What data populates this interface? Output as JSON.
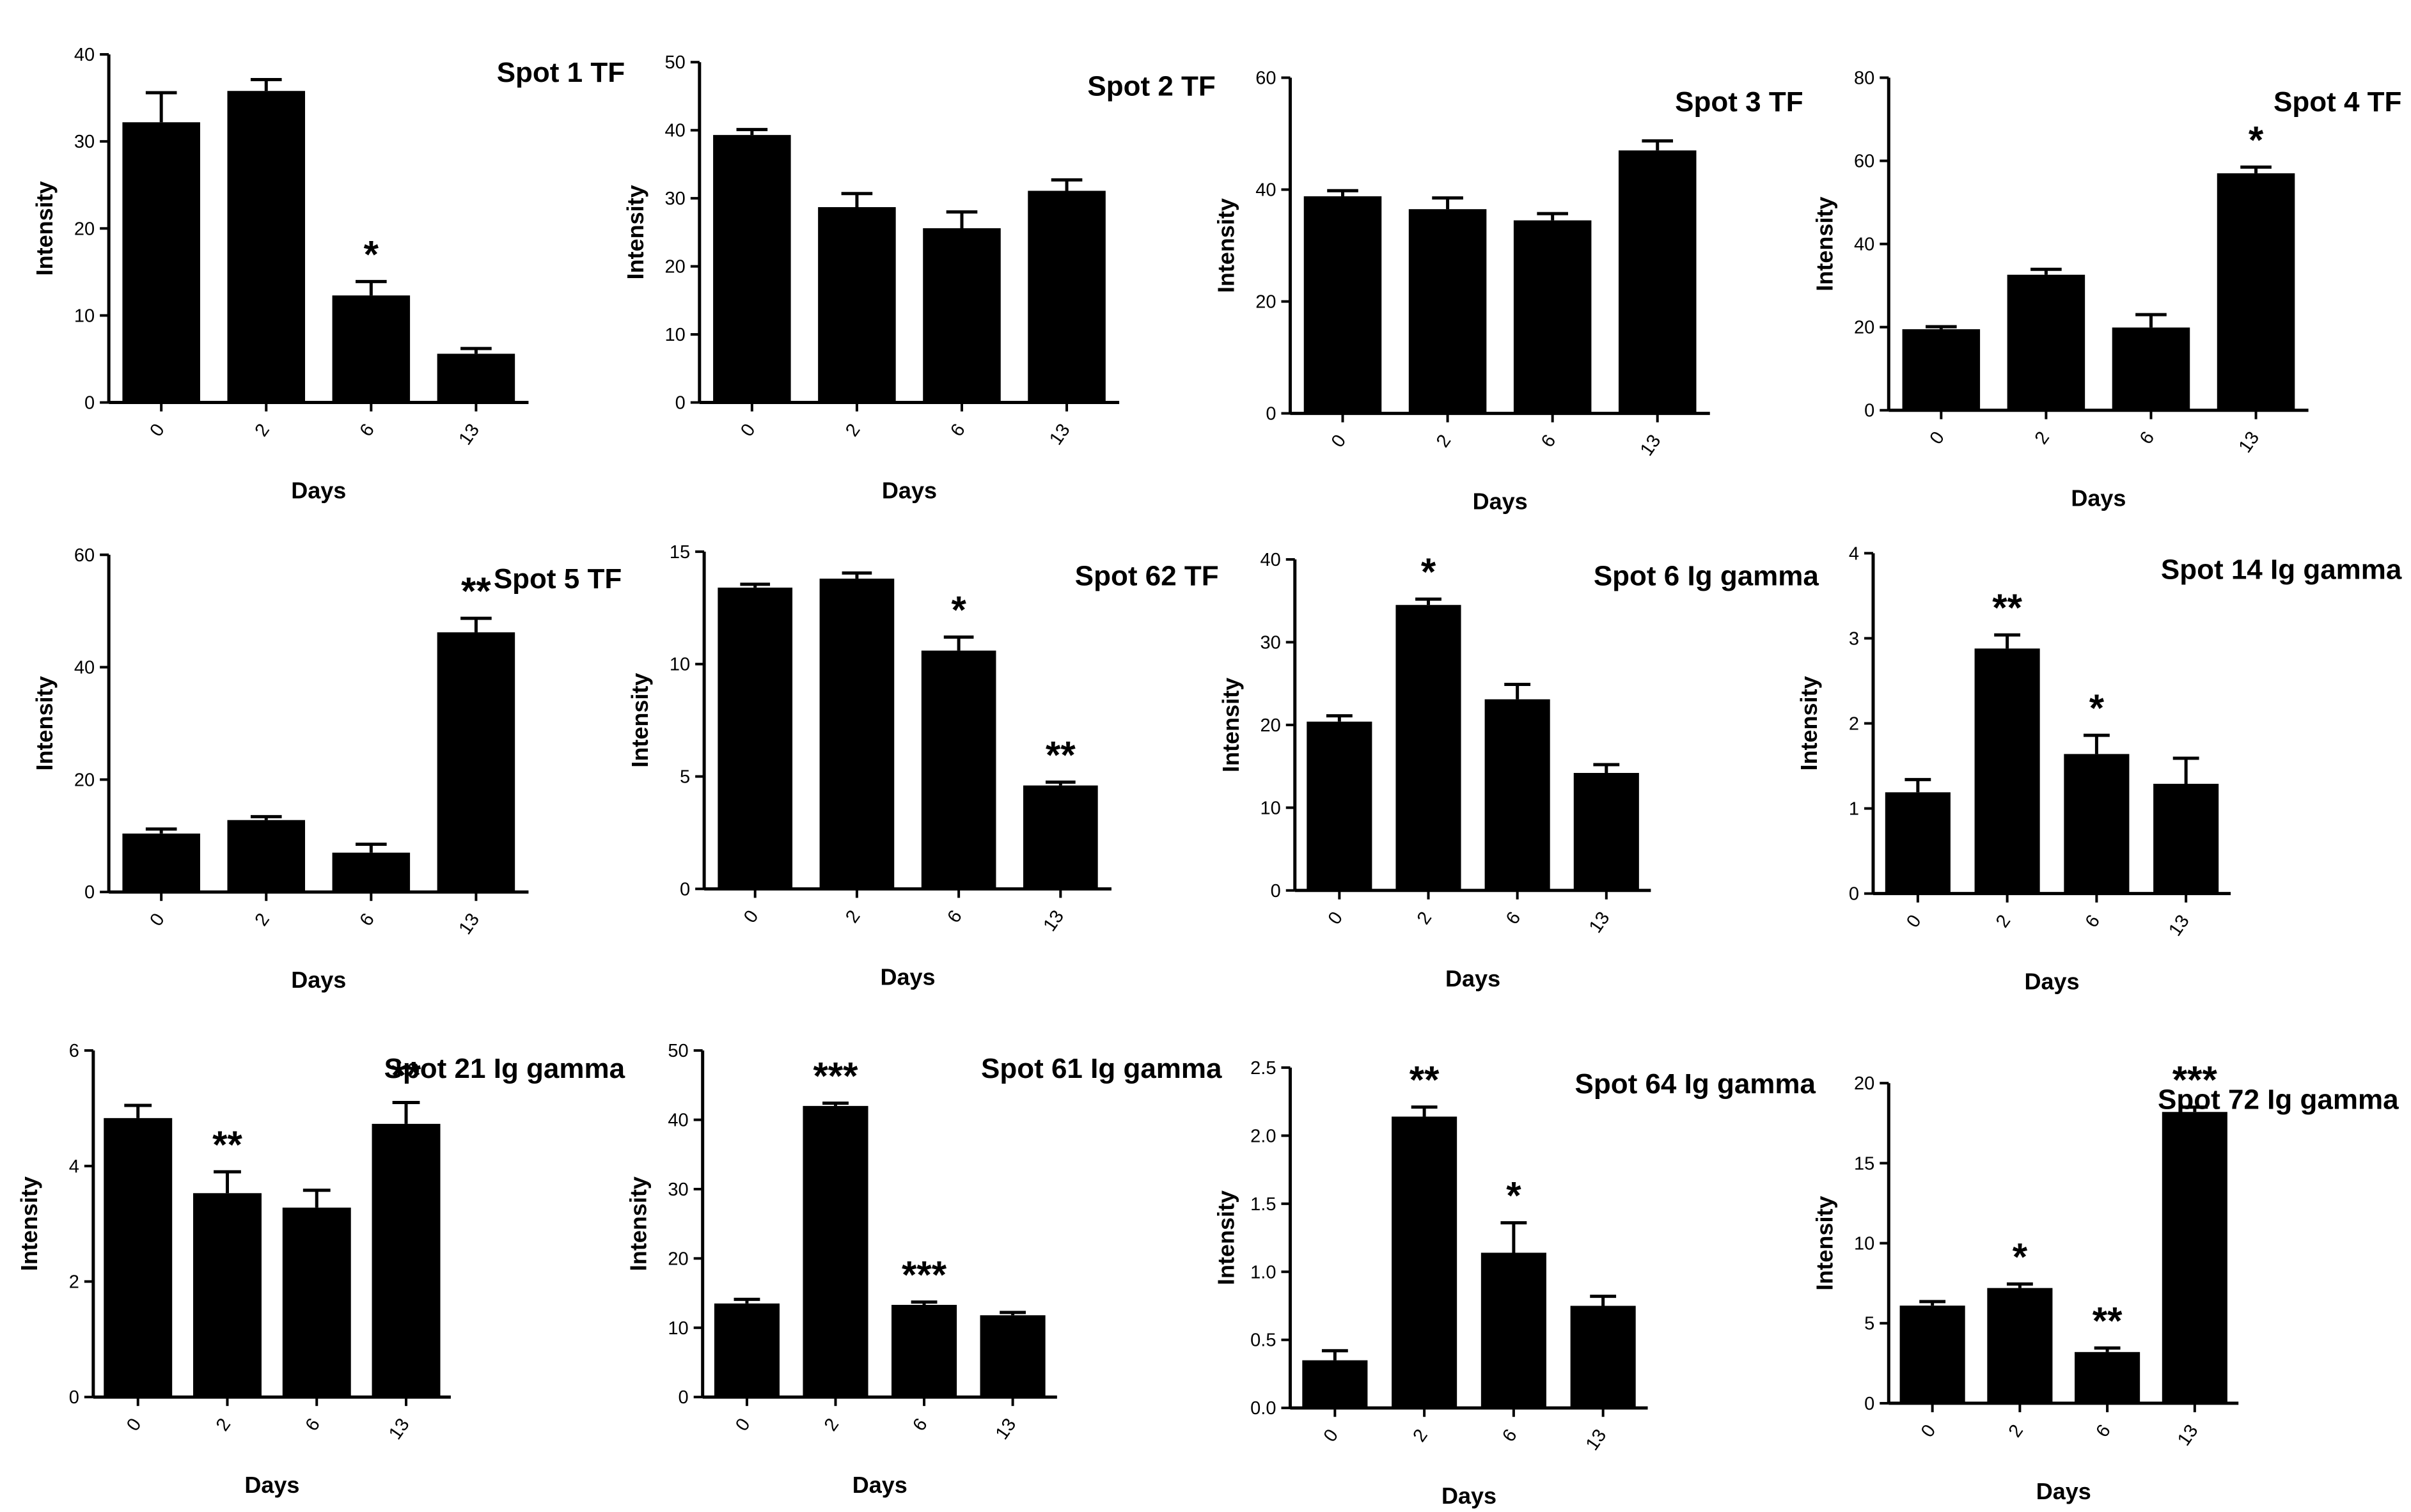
{
  "chart_data": [
    {
      "type": "bar",
      "title": "Spot 1 TF",
      "xlabel": "Days",
      "ylabel": "Intensity",
      "categories": [
        "0",
        "2",
        "6",
        "13"
      ],
      "values": [
        32.2,
        35.8,
        12.3,
        5.6
      ],
      "errors": [
        3.4,
        1.3,
        1.6,
        0.6
      ],
      "significance": [
        "",
        "",
        "*",
        ""
      ],
      "ylim": [
        0,
        40
      ],
      "yticks": [
        "0",
        "10",
        "20",
        "30",
        "40"
      ]
    },
    {
      "type": "bar",
      "title": "Spot 2 TF",
      "xlabel": "Days",
      "ylabel": "Intensity",
      "categories": [
        "0",
        "2",
        "6",
        "13"
      ],
      "values": [
        39.3,
        28.7,
        25.6,
        31.1
      ],
      "errors": [
        0.8,
        2.0,
        2.4,
        1.6
      ],
      "significance": [
        "",
        "",
        "",
        ""
      ],
      "ylim": [
        0,
        50
      ],
      "yticks": [
        "0",
        "10",
        "20",
        "30",
        "40",
        "50"
      ]
    },
    {
      "type": "bar",
      "title": "Spot 3 TF",
      "xlabel": "Days",
      "ylabel": "Intensity",
      "categories": [
        "0",
        "2",
        "6",
        "13"
      ],
      "values": [
        38.8,
        36.5,
        34.5,
        47.0
      ],
      "errors": [
        1.0,
        2.0,
        1.2,
        1.7
      ],
      "significance": [
        "",
        "",
        "",
        ""
      ],
      "ylim": [
        0,
        60
      ],
      "yticks": [
        "0",
        "20",
        "40",
        "60"
      ]
    },
    {
      "type": "bar",
      "title": "Spot 4 TF",
      "xlabel": "Days",
      "ylabel": "Intensity",
      "categories": [
        "0",
        "2",
        "6",
        "13"
      ],
      "values": [
        19.5,
        32.6,
        19.9,
        57.0
      ],
      "errors": [
        0.6,
        1.3,
        3.1,
        1.5
      ],
      "significance": [
        "",
        "",
        "",
        "*"
      ],
      "ylim": [
        0,
        80
      ],
      "yticks": [
        "0",
        "20",
        "40",
        "60",
        "80"
      ]
    },
    {
      "type": "bar",
      "title": "Spot 5 TF",
      "xlabel": "Days",
      "ylabel": "Intensity",
      "categories": [
        "0",
        "2",
        "6",
        "13"
      ],
      "values": [
        10.4,
        12.8,
        7.0,
        46.2
      ],
      "errors": [
        0.8,
        0.6,
        1.5,
        2.5
      ],
      "significance": [
        "",
        "",
        "",
        "**"
      ],
      "ylim": [
        0,
        60
      ],
      "yticks": [
        "0",
        "20",
        "40",
        "60"
      ]
    },
    {
      "type": "bar",
      "title": "Spot 62 TF",
      "xlabel": "Days",
      "ylabel": "Intensity",
      "categories": [
        "0",
        "2",
        "6",
        "13"
      ],
      "values": [
        13.4,
        13.8,
        10.6,
        4.6
      ],
      "errors": [
        0.15,
        0.25,
        0.6,
        0.15
      ],
      "significance": [
        "",
        "",
        "*",
        "**"
      ],
      "ylim": [
        0,
        15
      ],
      "yticks": [
        "0",
        "5",
        "10",
        "15"
      ]
    },
    {
      "type": "bar",
      "title": "Spot 6 Ig gamma",
      "xlabel": "Days",
      "ylabel": "Intensity",
      "categories": [
        "0",
        "2",
        "6",
        "13"
      ],
      "values": [
        20.4,
        34.5,
        23.1,
        14.2
      ],
      "errors": [
        0.7,
        0.7,
        1.8,
        1.0
      ],
      "significance": [
        "",
        "*",
        "",
        ""
      ],
      "ylim": [
        0,
        40
      ],
      "yticks": [
        "0",
        "10",
        "20",
        "30",
        "40"
      ]
    },
    {
      "type": "bar",
      "title": "Spot 14 Ig gamma",
      "xlabel": "Days",
      "ylabel": "Intensity",
      "categories": [
        "0",
        "2",
        "6",
        "13"
      ],
      "values": [
        1.19,
        2.88,
        1.64,
        1.29
      ],
      "errors": [
        0.15,
        0.16,
        0.22,
        0.3
      ],
      "significance": [
        "",
        "**",
        "*",
        ""
      ],
      "ylim": [
        0,
        4
      ],
      "yticks": [
        "0",
        "1",
        "2",
        "3",
        "4"
      ]
    },
    {
      "type": "bar",
      "title": "Spot 21 Ig gamma",
      "xlabel": "Days",
      "ylabel": "Intensity",
      "categories": [
        "0",
        "2",
        "6",
        "13"
      ],
      "values": [
        4.83,
        3.53,
        3.28,
        4.73
      ],
      "errors": [
        0.22,
        0.37,
        0.3,
        0.37
      ],
      "significance": [
        "",
        "**",
        "",
        "**"
      ],
      "ylim": [
        0,
        6
      ],
      "yticks": [
        "0",
        "2",
        "4",
        "6"
      ]
    },
    {
      "type": "bar",
      "title": "Spot 61 Ig gamma",
      "xlabel": "Days",
      "ylabel": "Intensity",
      "categories": [
        "0",
        "2",
        "6",
        "13"
      ],
      "values": [
        13.5,
        42.0,
        13.3,
        11.8
      ],
      "errors": [
        0.6,
        0.4,
        0.4,
        0.4
      ],
      "significance": [
        "",
        "***",
        "***",
        ""
      ],
      "ylim": [
        0,
        50
      ],
      "yticks": [
        "0",
        "10",
        "20",
        "30",
        "40",
        "50"
      ]
    },
    {
      "type": "bar",
      "title": "Spot 64 Ig gamma",
      "xlabel": "Days",
      "ylabel": "Intensity",
      "categories": [
        "0",
        "2",
        "6",
        "13"
      ],
      "values": [
        0.35,
        2.14,
        1.14,
        0.75
      ],
      "errors": [
        0.07,
        0.07,
        0.22,
        0.07
      ],
      "significance": [
        "",
        "**",
        "*",
        ""
      ],
      "ylim": [
        0,
        2.5
      ],
      "yticks": [
        "0.0",
        "0.5",
        "1.0",
        "1.5",
        "2.0",
        "2.5"
      ]
    },
    {
      "type": "bar",
      "title": "Spot 72 Ig gamma",
      "xlabel": "Days",
      "ylabel": "Intensity",
      "categories": [
        "0",
        "2",
        "6",
        "13"
      ],
      "values": [
        6.1,
        7.2,
        3.2,
        18.2
      ],
      "errors": [
        0.25,
        0.25,
        0.25,
        0.3
      ],
      "significance": [
        "",
        "*",
        "**",
        "***"
      ],
      "ylim": [
        0,
        20
      ],
      "yticks": [
        "0",
        "5",
        "10",
        "15",
        "20"
      ]
    }
  ]
}
